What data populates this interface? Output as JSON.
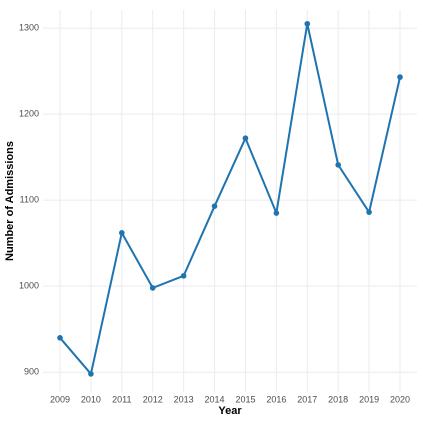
{
  "chart_data": {
    "type": "line",
    "x_label": "Year",
    "y_label": "Number of Admissions",
    "x": [
      2009,
      2010,
      2011,
      2012,
      2013,
      2014,
      2015,
      2016,
      2017,
      2018,
      2019,
      2020
    ],
    "series": [
      {
        "color": "#1f74b0",
        "values": [
          940,
          898,
          1062,
          998,
          1012,
          1093,
          1172,
          1085,
          1305,
          1141,
          1086,
          1243
        ]
      }
    ],
    "xlim": [
      2008.45,
      2020.55
    ],
    "xticks": [
      2009,
      2010,
      2011,
      2012,
      2013,
      2014,
      2015,
      2016,
      2017,
      2018,
      2019,
      2020
    ],
    "ylim": [
      877,
      1321
    ],
    "yticks": [
      900,
      1000,
      1100,
      1200,
      1300
    ],
    "grid": true
  }
}
